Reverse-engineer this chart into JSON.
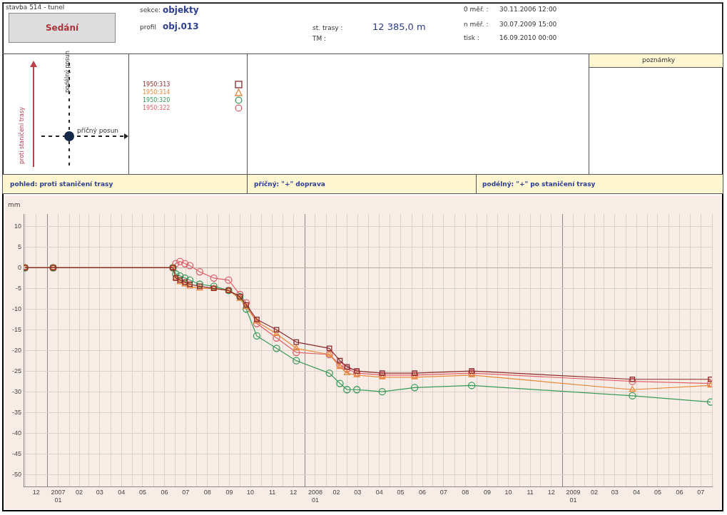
{
  "chart_data": {
    "type": "line",
    "title": "Sedání",
    "ylabel": "mm",
    "legend": "top left",
    "grid": true,
    "annotations": [
      "stavba 514 - tunel",
      "sekce:",
      "objekty",
      "profil",
      "obj.013",
      "st. trasy :",
      "12 385,0 m",
      "TM :",
      "0 měř. :",
      "30.11.2006 12:00",
      "n měř. :",
      "30.07.2009 15:00",
      "tisk :",
      "16.09.2010 00:00",
      "poznámky",
      "podélný posun",
      "příčný posun",
      "proti staničení trasy",
      "pohled: proti staničení trasy",
      "příčný: \"+\" doprava",
      "podélný: \"+\" po staničení trasy"
    ],
    "x": [
      "2006-11-30",
      "2007-01-09",
      "2007-06-28",
      "2007-07-02",
      "2007-07-08",
      "2007-07-15",
      "2007-07-22",
      "2007-08-05",
      "2007-08-25",
      "2007-09-15",
      "2007-10-01",
      "2007-10-10",
      "2007-10-25",
      "2007-11-22",
      "2007-12-20",
      "2008-02-05",
      "2008-02-20",
      "2008-03-01",
      "2008-03-15",
      "2008-04-20",
      "2008-06-05",
      "2008-08-25",
      "2009-04-10",
      "2009-07-30"
    ],
    "xlim": [
      "2006-11-28",
      "2009-08-01"
    ],
    "xticks": [
      {
        "value": "2006-12-01",
        "label": null
      },
      {
        "value": "2006-12-16",
        "label": "12"
      },
      {
        "value": "2007-01-01",
        "label": null
      },
      {
        "value": "2007-01-16",
        "label": "2007\n01"
      },
      {
        "value": "2007-02-01",
        "label": null
      },
      {
        "value": "2007-02-15",
        "label": "02"
      },
      {
        "value": "2007-03-01",
        "label": null
      },
      {
        "value": "2007-03-16",
        "label": "03"
      },
      {
        "value": "2007-04-01",
        "label": null
      },
      {
        "value": "2007-04-16",
        "label": "04"
      },
      {
        "value": "2007-05-01",
        "label": null
      },
      {
        "value": "2007-05-16",
        "label": "05"
      },
      {
        "value": "2007-06-01",
        "label": null
      },
      {
        "value": "2007-06-16",
        "label": "06"
      },
      {
        "value": "2007-07-01",
        "label": null
      },
      {
        "value": "2007-07-16",
        "label": "07"
      },
      {
        "value": "2007-08-01",
        "label": null
      },
      {
        "value": "2007-08-16",
        "label": "08"
      },
      {
        "value": "2007-09-01",
        "label": null
      },
      {
        "value": "2007-09-16",
        "label": "09"
      },
      {
        "value": "2007-10-01",
        "label": null
      },
      {
        "value": "2007-10-16",
        "label": "10"
      },
      {
        "value": "2007-11-01",
        "label": null
      },
      {
        "value": "2007-11-16",
        "label": "11"
      },
      {
        "value": "2007-12-01",
        "label": null
      },
      {
        "value": "2007-12-16",
        "label": "12"
      },
      {
        "value": "2008-01-01",
        "label": null
      },
      {
        "value": "2008-01-16",
        "label": "2008\n01"
      },
      {
        "value": "2008-02-01",
        "label": null
      },
      {
        "value": "2008-02-15",
        "label": "02"
      },
      {
        "value": "2008-03-01",
        "label": null
      },
      {
        "value": "2008-03-16",
        "label": "03"
      },
      {
        "value": "2008-04-01",
        "label": null
      },
      {
        "value": "2008-04-16",
        "label": "04"
      },
      {
        "value": "2008-05-01",
        "label": null
      },
      {
        "value": "2008-05-16",
        "label": "05"
      },
      {
        "value": "2008-06-01",
        "label": null
      },
      {
        "value": "2008-06-16",
        "label": "06"
      },
      {
        "value": "2008-07-01",
        "label": null
      },
      {
        "value": "2008-07-16",
        "label": "07"
      },
      {
        "value": "2008-08-01",
        "label": null
      },
      {
        "value": "2008-08-16",
        "label": "08"
      },
      {
        "value": "2008-09-01",
        "label": null
      },
      {
        "value": "2008-09-16",
        "label": "09"
      },
      {
        "value": "2008-10-01",
        "label": null
      },
      {
        "value": "2008-10-16",
        "label": "10"
      },
      {
        "value": "2008-11-01",
        "label": null
      },
      {
        "value": "2008-11-16",
        "label": "11"
      },
      {
        "value": "2008-12-01",
        "label": null
      },
      {
        "value": "2008-12-16",
        "label": "12"
      },
      {
        "value": "2009-01-01",
        "label": null
      },
      {
        "value": "2009-01-16",
        "label": "2009\n01"
      },
      {
        "value": "2009-02-01",
        "label": null
      },
      {
        "value": "2009-02-15",
        "label": "02"
      },
      {
        "value": "2009-03-01",
        "label": null
      },
      {
        "value": "2009-03-16",
        "label": "03"
      },
      {
        "value": "2009-04-01",
        "label": null
      },
      {
        "value": "2009-04-16",
        "label": "04"
      },
      {
        "value": "2009-05-01",
        "label": null
      },
      {
        "value": "2009-05-16",
        "label": "05"
      },
      {
        "value": "2009-06-01",
        "label": null
      },
      {
        "value": "2009-06-16",
        "label": "06"
      },
      {
        "value": "2009-07-01",
        "label": null
      },
      {
        "value": "2009-07-16",
        "label": "07"
      },
      {
        "value": "2009-08-01",
        "label": null
      }
    ],
    "ylim": [
      -53,
      13
    ],
    "yticks": [
      10,
      5,
      0,
      -5,
      -10,
      -15,
      -20,
      -25,
      -30,
      -35,
      -40,
      -45,
      -50
    ],
    "series": [
      {
        "name": "1950:313",
        "color": "#8b2a2a",
        "marker": "square",
        "values": [
          0,
          0,
          0,
          -2.5,
          -3,
          -3.5,
          -4,
          -4.5,
          -5,
          -5.5,
          -7,
          -9,
          -12.5,
          -15,
          -18,
          -19.5,
          -22.5,
          -24,
          -25,
          -25.5,
          -25.5,
          -25,
          -27,
          -27
        ]
      },
      {
        "name": "1950:314",
        "color": "#e8883a",
        "marker": "triangle",
        "values": [
          0,
          0,
          0,
          -2.5,
          -3.5,
          -4,
          -4.5,
          -5,
          -5,
          -5.5,
          -7.5,
          -9.5,
          -13,
          -16,
          -19.5,
          -21,
          -24,
          -25.5,
          -26,
          -26.5,
          -26.5,
          -26,
          -29.5,
          -28.5
        ]
      },
      {
        "name": "1950:320",
        "color": "#3a9a5a",
        "marker": "circle",
        "values": [
          0,
          0,
          0,
          -1.5,
          -2,
          -2.5,
          -3,
          -4,
          -4.5,
          -5.5,
          -7,
          -10,
          -16.5,
          -19.5,
          -22.5,
          -25.5,
          -28,
          -29.5,
          -29.5,
          -30,
          -29,
          -28.5,
          -31,
          -32.5
        ]
      },
      {
        "name": "1950:322",
        "color": "#e0606a",
        "marker": "circle",
        "values": [
          0,
          0,
          0,
          1,
          1.5,
          1,
          0.5,
          -1,
          -2.5,
          -3,
          -6.5,
          -8.5,
          -13.5,
          -17,
          -20.5,
          -21,
          -23.5,
          -24.5,
          -25.5,
          -26,
          -26,
          -25.5,
          -27.5,
          -28
        ]
      }
    ]
  }
}
